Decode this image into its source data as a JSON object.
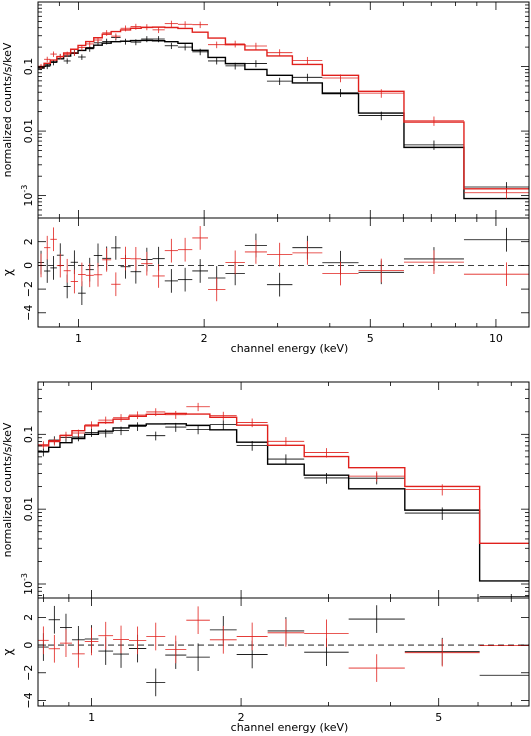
{
  "colors": {
    "detector_a": "#000000",
    "detector_b": "#e0201c",
    "reference_line": "#000000",
    "background": "#ffffff"
  },
  "chart_data": [
    {
      "panel": "upper",
      "type": "scatter",
      "subtype": "x-ray spectrum with model and residuals (log-log)",
      "xlabel": "channel energy (keV)",
      "xscale": "log",
      "xlim": [
        0.8,
        12
      ],
      "xticks": [
        1,
        2,
        5,
        10
      ],
      "spectrum": {
        "ylabel": "normalized counts/s/keV",
        "yscale": "log",
        "ylim": [
          0.00045,
          1.0
        ],
        "yticks": [
          0.1,
          0.01,
          0.001
        ],
        "ytick_labels": [
          "0.1",
          "0.01",
          "10^-3"
        ],
        "series": [
          {
            "color_key": "detector_a",
            "model": [
              [
                0.8,
                0.09
              ],
              [
                0.9,
                0.13
              ],
              [
                1.0,
                0.17
              ],
              [
                1.1,
                0.21
              ],
              [
                1.2,
                0.24
              ],
              [
                1.4,
                0.255
              ],
              [
                1.6,
                0.25
              ],
              [
                1.8,
                0.23
              ],
              [
                1.9,
                0.2
              ],
              [
                2.0,
                0.165
              ],
              [
                2.2,
                0.13
              ],
              [
                2.5,
                0.1
              ],
              [
                3.0,
                0.075
              ],
              [
                4.0,
                0.045
              ],
              [
                5.0,
                0.025
              ],
              [
                6.0,
                0.012
              ],
              [
                7.0,
                0.0065
              ],
              [
                8.0,
                0.0032
              ],
              [
                9.0,
                0.0016
              ],
              [
                10.0,
                0.0009
              ],
              [
                12.0,
                0.0009
              ]
            ],
            "data_range": [
              0.8,
              10.5
            ],
            "scatter": 0.22
          },
          {
            "color_key": "detector_b",
            "model": [
              [
                0.8,
                0.095
              ],
              [
                0.9,
                0.14
              ],
              [
                1.0,
                0.2
              ],
              [
                1.1,
                0.27
              ],
              [
                1.2,
                0.34
              ],
              [
                1.4,
                0.4
              ],
              [
                1.6,
                0.41
              ],
              [
                1.8,
                0.39
              ],
              [
                2.0,
                0.33
              ],
              [
                2.2,
                0.26
              ],
              [
                2.3,
                0.23
              ],
              [
                2.5,
                0.2
              ],
              [
                3.0,
                0.15
              ],
              [
                4.0,
                0.085
              ],
              [
                5.0,
                0.05
              ],
              [
                6.0,
                0.03
              ],
              [
                7.0,
                0.016
              ],
              [
                8.0,
                0.008
              ],
              [
                9.0,
                0.004
              ],
              [
                10.0,
                0.0022
              ],
              [
                11.0,
                0.0012
              ],
              [
                12.0,
                0.0007
              ]
            ],
            "data_range": [
              0.8,
              12.0
            ],
            "scatter": 0.22
          }
        ]
      },
      "residuals": {
        "ylabel": "χ",
        "ylim": [
          -5.2,
          4.0
        ],
        "yticks": [
          -4,
          -2,
          0,
          2
        ],
        "ytick_labels": [
          "−4",
          "−2",
          "0",
          "2"
        ],
        "reference_line": 0,
        "spread": 1.1
      }
    },
    {
      "panel": "lower",
      "type": "scatter",
      "subtype": "x-ray spectrum with model and residuals (log-log)",
      "xlabel": "channel energy (keV)",
      "xscale": "log",
      "xlim": [
        0.78,
        7.6
      ],
      "xticks": [
        1,
        2,
        5
      ],
      "spectrum": {
        "ylabel": "normalized counts/s/keV",
        "yscale": "log",
        "ylim": [
          0.00065,
          0.5
        ],
        "yticks": [
          0.1,
          0.01,
          0.001
        ],
        "ytick_labels": [
          "0.1",
          "0.01",
          "10^-3"
        ],
        "series": [
          {
            "color_key": "detector_a",
            "model": [
              [
                0.78,
                0.055
              ],
              [
                0.9,
                0.08
              ],
              [
                1.0,
                0.1
              ],
              [
                1.2,
                0.13
              ],
              [
                1.4,
                0.14
              ],
              [
                1.6,
                0.135
              ],
              [
                1.8,
                0.12
              ],
              [
                2.0,
                0.1
              ],
              [
                2.2,
                0.065
              ],
              [
                2.4,
                0.042
              ],
              [
                2.8,
                0.032
              ],
              [
                3.2,
                0.025
              ],
              [
                4.0,
                0.017
              ],
              [
                5.0,
                0.011
              ],
              [
                5.6,
                0.007
              ],
              [
                6.0,
                0.0055
              ],
              [
                6.6,
                0.003
              ],
              [
                7.0,
                0.0011
              ],
              [
                7.6,
                0.0011
              ]
            ],
            "data_range": [
              0.78,
              7.3
            ],
            "scatter": 0.28
          },
          {
            "color_key": "detector_b",
            "model": [
              [
                0.78,
                0.065
              ],
              [
                0.9,
                0.1
              ],
              [
                1.0,
                0.13
              ],
              [
                1.2,
                0.17
              ],
              [
                1.4,
                0.19
              ],
              [
                1.6,
                0.19
              ],
              [
                1.8,
                0.175
              ],
              [
                2.0,
                0.15
              ],
              [
                2.2,
                0.12
              ],
              [
                2.3,
                0.08
              ],
              [
                2.5,
                0.07
              ],
              [
                3.0,
                0.05
              ],
              [
                4.0,
                0.033
              ],
              [
                5.0,
                0.022
              ],
              [
                5.6,
                0.016
              ],
              [
                6.0,
                0.012
              ],
              [
                6.6,
                0.008
              ],
              [
                7.0,
                0.005
              ],
              [
                7.6,
                0.0035
              ]
            ],
            "data_range": [
              0.78,
              7.6
            ],
            "scatter": 0.25
          }
        ]
      },
      "residuals": {
        "ylabel": "χ",
        "ylim": [
          -4.4,
          3.4
        ],
        "yticks": [
          -4,
          -2,
          0,
          2
        ],
        "ytick_labels": [
          "−4",
          "−2",
          "0",
          "2"
        ],
        "reference_line": 0,
        "spread": 1.1
      }
    }
  ]
}
